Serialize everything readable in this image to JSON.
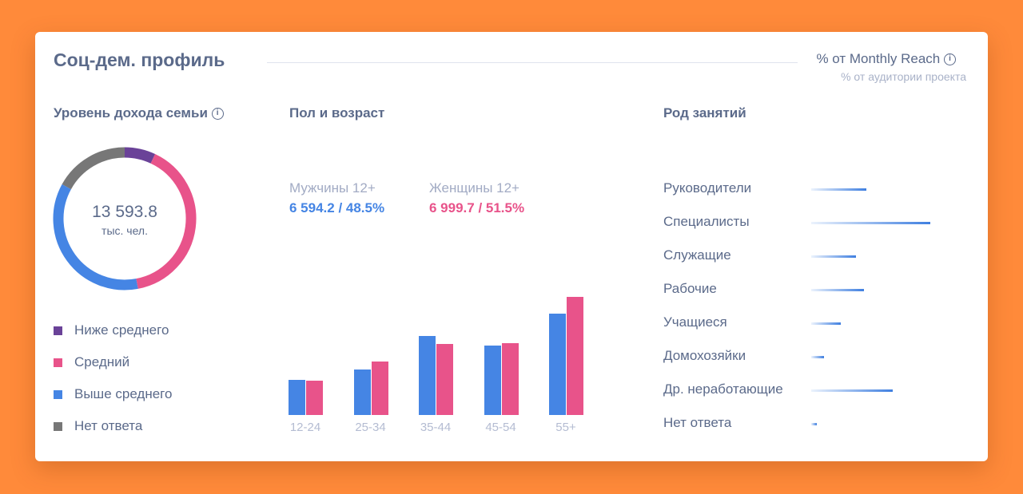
{
  "header": {
    "title": "Соц-дем. профиль",
    "metric": "% от Monthly Reach",
    "metric_sub": "% от аудитории проекта"
  },
  "income": {
    "title": "Уровень дохода семьи",
    "total": "13 593.8",
    "unit": "тыс. чел.",
    "segments": [
      {
        "label": "Ниже среднего",
        "percent": 7,
        "color": "#6a4298"
      },
      {
        "label": "Средний",
        "percent": 40,
        "color": "#e8538a"
      },
      {
        "label": "Выше среднего",
        "percent": 36,
        "color": "#4585e4"
      },
      {
        "label": "Нет ответа",
        "percent": 17,
        "color": "#777777"
      }
    ]
  },
  "gender_age": {
    "title": "Пол и возраст",
    "men": {
      "label": "Мужчины 12+",
      "value": "6 594.2 / 48.5%",
      "color": "#4585e4"
    },
    "women": {
      "label": "Женщины 12+",
      "value": "6 999.7 / 51.5%",
      "color": "#e8538a"
    }
  },
  "chart_data": {
    "type": "bar",
    "categories": [
      "12-24",
      "25-34",
      "35-44",
      "45-54",
      "55+"
    ],
    "series": [
      {
        "name": "Мужчины 12+",
        "values": [
          44,
          57,
          100,
          88,
          128
        ]
      },
      {
        "name": "Женщины 12+",
        "values": [
          43,
          67,
          90,
          91,
          149
        ]
      }
    ],
    "ylim": [
      0,
      150
    ]
  },
  "occupation": {
    "title": "Род занятий",
    "items": [
      {
        "label": "Руководители",
        "value": 69
      },
      {
        "label": "Специалисты",
        "value": 149
      },
      {
        "label": "Служащие",
        "value": 56
      },
      {
        "label": "Рабочие",
        "value": 66
      },
      {
        "label": "Учащиеся",
        "value": 37
      },
      {
        "label": "Домохозяйки",
        "value": 16
      },
      {
        "label": "Др. неработающие",
        "value": 102
      },
      {
        "label": "Нет ответа",
        "value": 7
      }
    ]
  }
}
